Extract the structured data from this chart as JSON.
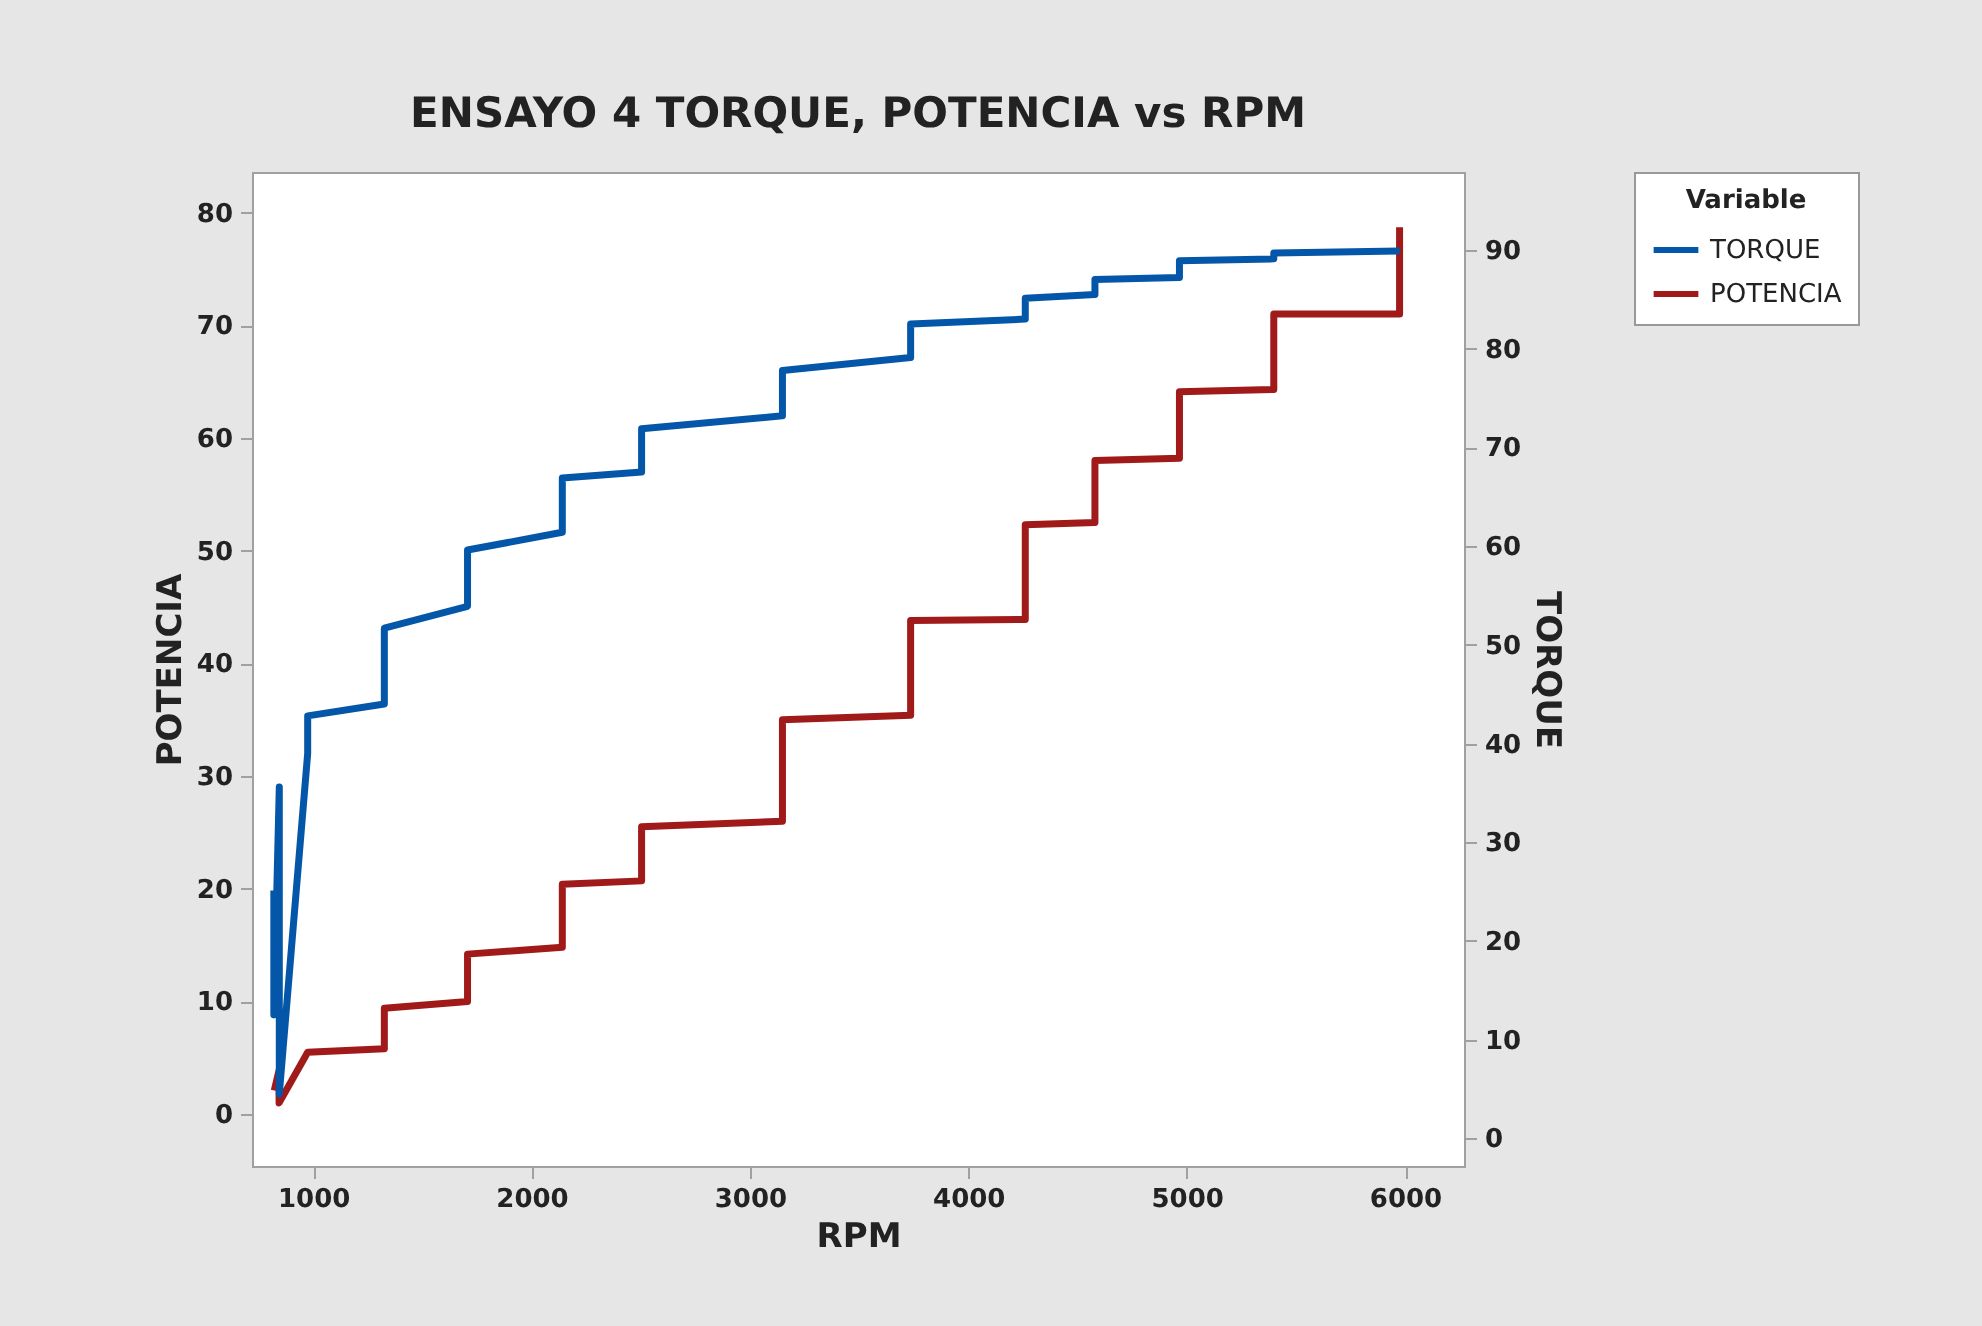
{
  "chart_data": {
    "type": "line",
    "title": "ENSAYO 4 TORQUE, POTENCIA vs RPM",
    "xlabel": "RPM",
    "ylabel": "POTENCIA",
    "y2label": "TORQUE",
    "legend_title": "Variable",
    "legend": "top right",
    "xlim": [
      720,
      6270
    ],
    "xticks": [
      1000,
      2000,
      3000,
      4000,
      5000,
      6000
    ],
    "ylim": [
      -4.6,
      83.6
    ],
    "yticks": [
      0,
      10,
      20,
      30,
      40,
      50,
      60,
      70,
      80
    ],
    "y2lim": [
      -2.8,
      97.9
    ],
    "y2ticks": [
      0,
      10,
      20,
      30,
      40,
      50,
      60,
      70,
      80,
      90
    ],
    "series": [
      {
        "name": "TORQUE",
        "color": "#0457a8",
        "axis": "y2",
        "x": [
          820,
          820,
          845,
          845,
          975,
          975,
          1326,
          1326,
          1707,
          1707,
          2141,
          2141,
          2504,
          2504,
          3149,
          3149,
          3736,
          3736,
          4261,
          4261,
          4580,
          4580,
          4967,
          4967,
          5399,
          5399,
          5975
        ],
        "values": [
          25.1,
          12.5,
          35.6,
          4.5,
          39.0,
          42.8,
          44.0,
          51.7,
          53.9,
          59.6,
          61.4,
          66.9,
          67.5,
          71.9,
          73.2,
          77.8,
          79.1,
          82.5,
          83.0,
          85.1,
          85.5,
          87.0,
          87.2,
          88.9,
          89.1,
          89.7,
          89.9
        ]
      },
      {
        "name": "POTENCIA",
        "color": "#a11a1a",
        "x": [
          822,
          844,
          844,
          975,
          1326,
          1326,
          1707,
          1707,
          2141,
          2141,
          2504,
          2504,
          3149,
          3149,
          3736,
          3736,
          4261,
          4261,
          4580,
          4580,
          4967,
          4967,
          5399,
          5399,
          5975,
          5975
        ],
        "values": [
          2.1,
          3.9,
          1.0,
          5.5,
          5.8,
          9.4,
          10.0,
          14.2,
          14.8,
          20.4,
          20.7,
          25.5,
          26.0,
          35.0,
          35.4,
          43.8,
          43.9,
          52.3,
          52.5,
          58.0,
          58.2,
          64.1,
          64.3,
          71.0,
          71.0,
          78.7
        ]
      }
    ]
  }
}
